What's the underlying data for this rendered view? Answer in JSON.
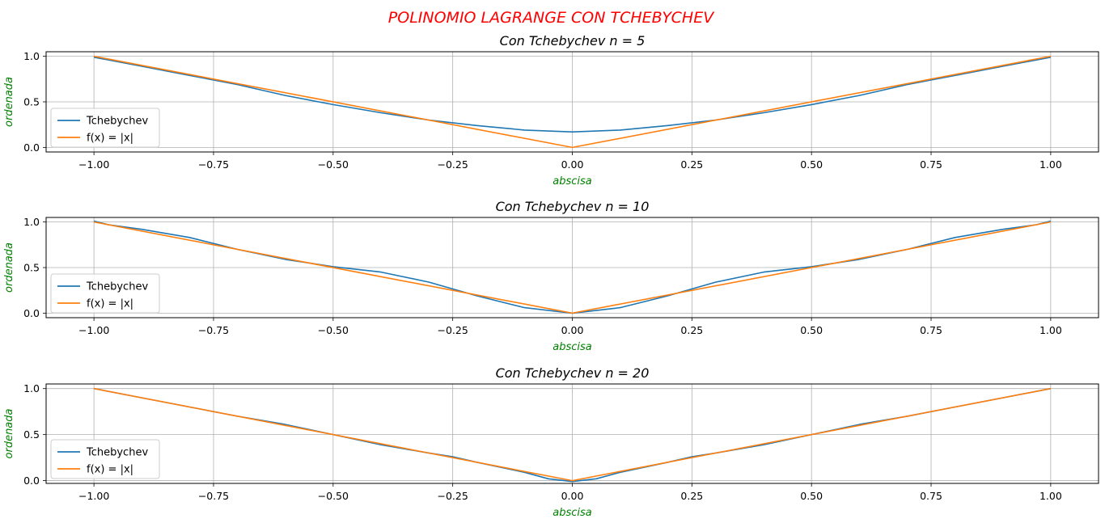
{
  "figure": {
    "suptitle": "POLINOMIO LAGRANGE CON TCHEBYCHEV",
    "suptitle_color": "#ff0000",
    "axis_label_color": "#008000",
    "series_colors": [
      "#1f77b4",
      "#ff7f0e"
    ]
  },
  "chart_data": [
    {
      "type": "line",
      "title_prefix": "Con Tchebychev ",
      "title_math": "n = 5",
      "xlabel": "abscisa",
      "ylabel": "ordenada",
      "xlim": [
        -1.1,
        1.1
      ],
      "ylim": [
        -0.05,
        1.05
      ],
      "x_ticks": [
        -1.0,
        -0.75,
        -0.5,
        -0.25,
        0.0,
        0.25,
        0.5,
        0.75,
        1.0
      ],
      "x_tick_labels": [
        "−1.00",
        "−0.75",
        "−0.50",
        "−0.25",
        "0.00",
        "0.25",
        "0.50",
        "0.75",
        "1.00"
      ],
      "y_ticks": [
        0.0,
        0.5,
        1.0
      ],
      "y_tick_labels": [
        "0.0",
        "0.5",
        "1.0"
      ],
      "grid": true,
      "legend_position": "lower-left",
      "series": [
        {
          "name": "Tchebychev",
          "x": [
            -1.0,
            -0.9,
            -0.8,
            -0.7,
            -0.6,
            -0.5,
            -0.4,
            -0.3,
            -0.2,
            -0.1,
            0.0,
            0.1,
            0.2,
            0.3,
            0.4,
            0.5,
            0.6,
            0.7,
            0.8,
            0.9,
            1.0
          ],
          "y": [
            0.99,
            0.89,
            0.79,
            0.69,
            0.57,
            0.47,
            0.38,
            0.3,
            0.24,
            0.19,
            0.17,
            0.19,
            0.24,
            0.3,
            0.38,
            0.47,
            0.57,
            0.69,
            0.79,
            0.89,
            0.99
          ]
        },
        {
          "name": "f(x) = |x|",
          "x": [
            -1.0,
            0.0,
            1.0
          ],
          "y": [
            1.0,
            0.0,
            1.0
          ]
        }
      ]
    },
    {
      "type": "line",
      "title_prefix": "Con Tchebychev ",
      "title_math": "n = 10",
      "xlabel": "abscisa",
      "ylabel": "ordenada",
      "xlim": [
        -1.1,
        1.1
      ],
      "ylim": [
        -0.05,
        1.05
      ],
      "x_ticks": [
        -1.0,
        -0.75,
        -0.5,
        -0.25,
        0.0,
        0.25,
        0.5,
        0.75,
        1.0
      ],
      "x_tick_labels": [
        "−1.00",
        "−0.75",
        "−0.50",
        "−0.25",
        "0.00",
        "0.25",
        "0.50",
        "0.75",
        "1.00"
      ],
      "y_ticks": [
        0.0,
        0.5,
        1.0
      ],
      "y_tick_labels": [
        "0.0",
        "0.5",
        "1.0"
      ],
      "grid": true,
      "legend_position": "lower-left",
      "series": [
        {
          "name": "Tchebychev",
          "x": [
            -1.0,
            -0.97,
            -0.9,
            -0.8,
            -0.7,
            -0.6,
            -0.5,
            -0.4,
            -0.3,
            -0.2,
            -0.1,
            0.0,
            0.1,
            0.2,
            0.3,
            0.4,
            0.5,
            0.6,
            0.7,
            0.8,
            0.9,
            0.97,
            1.0
          ],
          "y": [
            1.01,
            0.97,
            0.92,
            0.83,
            0.7,
            0.59,
            0.51,
            0.45,
            0.34,
            0.19,
            0.06,
            0.0,
            0.06,
            0.19,
            0.34,
            0.45,
            0.51,
            0.59,
            0.7,
            0.83,
            0.92,
            0.97,
            1.01
          ]
        },
        {
          "name": "f(x) = |x|",
          "x": [
            -1.0,
            0.0,
            1.0
          ],
          "y": [
            1.0,
            0.0,
            1.0
          ]
        }
      ]
    },
    {
      "type": "line",
      "title_prefix": "Con Tchebychev ",
      "title_math": "n = 20",
      "xlabel": "abscisa",
      "ylabel": "ordenada",
      "xlim": [
        -1.1,
        1.1
      ],
      "ylim": [
        -0.03,
        1.05
      ],
      "x_ticks": [
        -1.0,
        -0.75,
        -0.5,
        -0.25,
        0.0,
        0.25,
        0.5,
        0.75,
        1.0
      ],
      "x_tick_labels": [
        "−1.00",
        "−0.75",
        "−0.50",
        "−0.25",
        "0.00",
        "0.25",
        "0.50",
        "0.75",
        "1.00"
      ],
      "y_ticks": [
        0.0,
        0.5,
        1.0
      ],
      "y_tick_labels": [
        "0.0",
        "0.5",
        "1.0"
      ],
      "grid": true,
      "legend_position": "lower-left",
      "series": [
        {
          "name": "Tchebychev",
          "x": [
            -1.0,
            -0.9,
            -0.8,
            -0.7,
            -0.6,
            -0.5,
            -0.4,
            -0.3,
            -0.25,
            -0.2,
            -0.1,
            -0.05,
            0.0,
            0.05,
            0.1,
            0.2,
            0.25,
            0.3,
            0.4,
            0.5,
            0.6,
            0.7,
            0.8,
            0.9,
            1.0
          ],
          "y": [
            1.0,
            0.9,
            0.8,
            0.7,
            0.61,
            0.5,
            0.39,
            0.3,
            0.26,
            0.2,
            0.09,
            0.02,
            -0.01,
            0.02,
            0.09,
            0.2,
            0.26,
            0.3,
            0.39,
            0.5,
            0.61,
            0.7,
            0.8,
            0.9,
            1.0
          ]
        },
        {
          "name": "f(x) = |x|",
          "x": [
            -1.0,
            0.0,
            1.0
          ],
          "y": [
            1.0,
            0.0,
            1.0
          ]
        }
      ]
    }
  ]
}
